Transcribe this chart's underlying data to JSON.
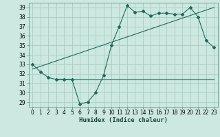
{
  "xlabel": "Humidex (Indice chaleur)",
  "bg_color": "#cce8e0",
  "grid_color": "#aaccC4",
  "line_color": "#1a6b5a",
  "xlim": [
    -0.5,
    23.5
  ],
  "ylim": [
    28.5,
    39.5
  ],
  "yticks": [
    29,
    30,
    31,
    32,
    33,
    34,
    35,
    36,
    37,
    38,
    39
  ],
  "xticks": [
    0,
    1,
    2,
    3,
    4,
    5,
    6,
    7,
    8,
    9,
    10,
    11,
    12,
    13,
    14,
    15,
    16,
    17,
    18,
    19,
    20,
    21,
    22,
    23
  ],
  "curve1_x": [
    0,
    1,
    2,
    3,
    4,
    5,
    6,
    7,
    8,
    9,
    10,
    11,
    12,
    13,
    14,
    15,
    16,
    17,
    18,
    19,
    20,
    21,
    22,
    23
  ],
  "curve1_y": [
    33.0,
    32.2,
    31.6,
    31.4,
    31.4,
    31.4,
    28.8,
    29.0,
    30.0,
    31.8,
    35.0,
    37.0,
    39.2,
    38.5,
    38.6,
    38.1,
    38.4,
    38.4,
    38.3,
    38.3,
    39.0,
    38.0,
    35.5,
    34.8
  ],
  "curve2_x": [
    0,
    23
  ],
  "curve2_y": [
    32.5,
    39.0
  ],
  "curve3_x": [
    3,
    23
  ],
  "curve3_y": [
    31.4,
    31.4
  ],
  "font_size_label": 6.5,
  "font_size_tick": 5.5
}
